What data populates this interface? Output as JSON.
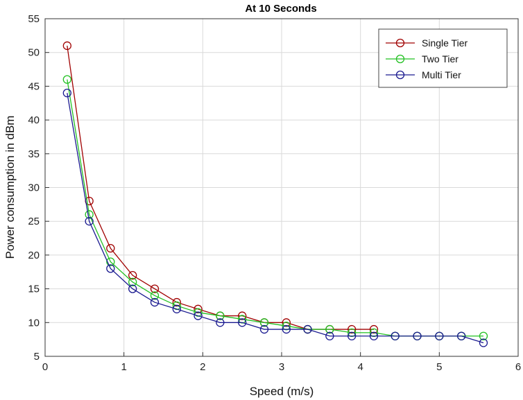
{
  "chart_data": {
    "type": "line",
    "title": "At 10 Seconds",
    "xlabel": "Speed (m/s)",
    "ylabel": "Power consumption in dBm",
    "xlim": [
      0,
      6
    ],
    "ylim": [
      5,
      55
    ],
    "xticks": [
      "0",
      "1",
      "2",
      "3",
      "4",
      "5",
      "6"
    ],
    "yticks": [
      "5",
      "10",
      "15",
      "20",
      "25",
      "30",
      "35",
      "40",
      "45",
      "50",
      "55"
    ],
    "grid": true,
    "legend_position": "top-right",
    "series": [
      {
        "name": "Single Tier",
        "color": "#a00000",
        "marker": "circle",
        "x": [
          0.28,
          0.56,
          0.83,
          1.11,
          1.39,
          1.67,
          1.94,
          2.22,
          2.5,
          2.78,
          3.06,
          3.33,
          3.61,
          3.89,
          4.17
        ],
        "y": [
          51,
          28,
          21,
          17,
          15,
          13,
          12,
          11,
          11,
          10,
          10,
          9,
          9,
          9,
          9
        ]
      },
      {
        "name": "Two Tier",
        "color": "#22c022",
        "marker": "circle",
        "x": [
          0.28,
          0.56,
          0.83,
          1.11,
          1.39,
          1.67,
          1.94,
          2.22,
          2.5,
          2.78,
          3.06,
          3.33,
          3.61,
          3.89,
          4.17,
          4.44,
          4.72,
          5.0,
          5.28,
          5.56
        ],
        "y": [
          46,
          26,
          19,
          16,
          14,
          12.5,
          11.5,
          11,
          10.5,
          10,
          9.5,
          9,
          9,
          8.5,
          8.5,
          8,
          8,
          8,
          8,
          8
        ]
      },
      {
        "name": "Multi Tier",
        "color": "#1a1a90",
        "marker": "circle",
        "x": [
          0.28,
          0.56,
          0.83,
          1.11,
          1.39,
          1.67,
          1.94,
          2.22,
          2.5,
          2.78,
          3.06,
          3.33,
          3.61,
          3.89,
          4.17,
          4.44,
          4.72,
          5.0,
          5.28,
          5.56
        ],
        "y": [
          44,
          25,
          18,
          15,
          13,
          12,
          11,
          10,
          10,
          9,
          9,
          9,
          8,
          8,
          8,
          8,
          8,
          8,
          8,
          7
        ]
      }
    ]
  }
}
